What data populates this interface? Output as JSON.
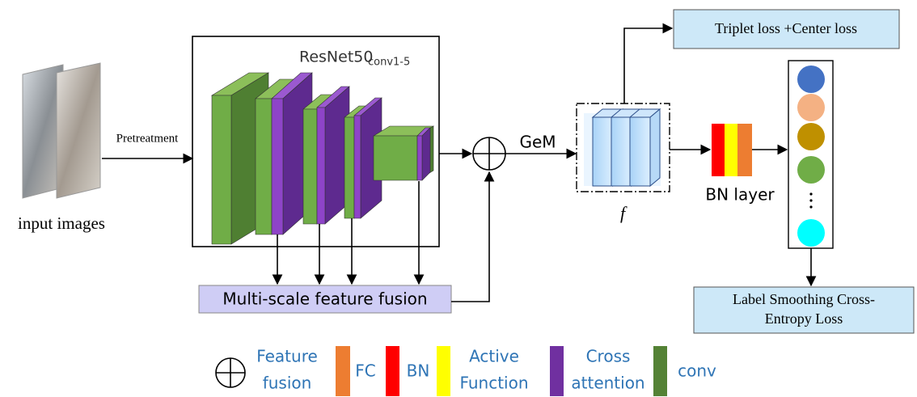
{
  "input": {
    "label": "input images",
    "arrow_label": "Pretreatment"
  },
  "backbone": {
    "name": "ResNet50",
    "subscript": "conv1-5"
  },
  "fusion": {
    "label": "Multi-scale feature fusion"
  },
  "pooling": {
    "label": "GeM"
  },
  "feature": {
    "label": "f"
  },
  "triplet_loss": {
    "label": "Triplet loss +Center loss"
  },
  "bn_layer": {
    "label": "BN layer"
  },
  "ce_loss": {
    "lines": [
      "Label Smoothing Cross-",
      "Entropy Loss"
    ]
  },
  "legend": [
    {
      "lines": [
        "Feature",
        "fusion"
      ]
    },
    {
      "lines": [
        "FC"
      ]
    },
    {
      "lines": [
        "BN"
      ]
    },
    {
      "lines": [
        "Active",
        "Function"
      ]
    },
    {
      "lines": [
        "Cross",
        "attention"
      ]
    },
    {
      "lines": [
        "conv"
      ]
    }
  ]
}
